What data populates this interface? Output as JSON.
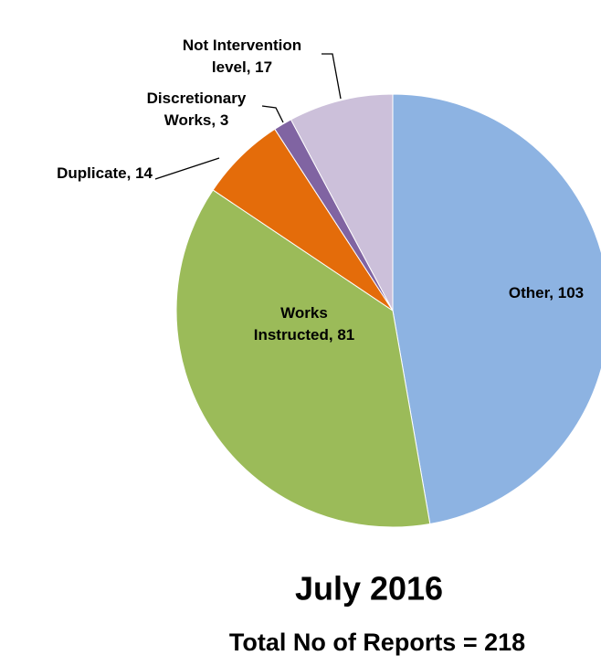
{
  "chart_data": {
    "type": "pie",
    "title": "July 2016",
    "subtitle": "Total No of Reports = 218",
    "values": [
      103,
      81,
      14,
      3,
      17
    ],
    "value_labels": [
      [
        "Other, 103"
      ],
      [
        "Works",
        "Instructed, 81"
      ],
      [
        "Duplicate, 14"
      ],
      [
        "Discretionary",
        "Works, 3"
      ],
      [
        "Not Intervention",
        "level, 17"
      ]
    ],
    "colors": [
      "#8db3e2",
      "#9bbb59",
      "#e46c0a",
      "#8064a2",
      "#ccc0da"
    ]
  }
}
